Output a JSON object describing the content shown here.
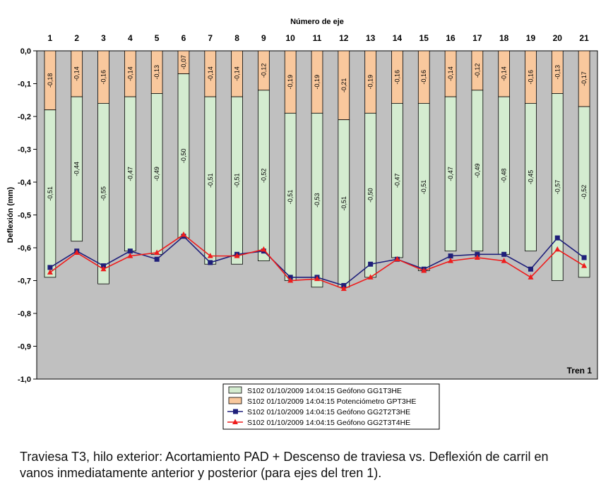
{
  "chart_data": {
    "type": "bar",
    "title": "Número de eje",
    "xlabel": "Número de eje",
    "ylabel": "Deflexión (mm)",
    "ylim": [
      -1.0,
      0.0
    ],
    "yticks": [
      "0,0",
      "-0,1",
      "-0,2",
      "-0,3",
      "-0,4",
      "-0,5",
      "-0,6",
      "-0,7",
      "-0,8",
      "-0,9",
      "-1,0"
    ],
    "categories": [
      "1",
      "2",
      "3",
      "4",
      "5",
      "6",
      "7",
      "8",
      "9",
      "10",
      "11",
      "12",
      "13",
      "14",
      "15",
      "16",
      "17",
      "18",
      "19",
      "20",
      "21"
    ],
    "annotation": "Tren 1",
    "grid": false,
    "legend_position": "bottom",
    "stacked_bar_series": [
      {
        "name": "S102 01/10/2009 14:04:15 Potenciómetro GPT3HE",
        "color": "#f9c89d",
        "values": [
          -0.18,
          -0.14,
          -0.16,
          -0.14,
          -0.13,
          -0.07,
          -0.14,
          -0.14,
          -0.12,
          -0.19,
          -0.19,
          -0.21,
          -0.19,
          -0.16,
          -0.16,
          -0.14,
          -0.12,
          -0.14,
          -0.16,
          -0.13,
          -0.17
        ],
        "labels": [
          "-0,18",
          "-0,14",
          "-0,16",
          "-0,14",
          "-0,13",
          "-0,07",
          "-0,14",
          "-0,14",
          "-0,12",
          "-0,19",
          "-0,19",
          "-0,21",
          "-0,19",
          "-0,16",
          "-0,16",
          "-0,14",
          "-0,12",
          "-0,14",
          "-0,16",
          "-0,13",
          "-0,17"
        ]
      },
      {
        "name": "S102 01/10/2009 14:04:15 Geófono GG1T3HE",
        "color": "#d4ecd0",
        "values": [
          -0.51,
          -0.44,
          -0.55,
          -0.47,
          -0.49,
          -0.5,
          -0.51,
          -0.51,
          -0.52,
          -0.51,
          -0.53,
          -0.51,
          -0.5,
          -0.47,
          -0.51,
          -0.47,
          -0.49,
          -0.48,
          -0.45,
          -0.57,
          -0.52
        ],
        "labels": [
          "-0,51",
          "-0,44",
          "-0,55",
          "-0,47",
          "-0,49",
          "-0,50",
          "-0,51",
          "-0,51",
          "-0,52",
          "-0,51",
          "-0,53",
          "-0,51",
          "-0,50",
          "-0,47",
          "-0,51",
          "-0,47",
          "-0,49",
          "-0,48",
          "-0,45",
          "-0,57",
          "-0,52"
        ]
      }
    ],
    "line_series": [
      {
        "name": "S102 01/10/2009 14:04:15 Geófono GG2T2T3HE",
        "color": "#1f1f7a",
        "marker": "square",
        "values": [
          -0.66,
          -0.61,
          -0.655,
          -0.61,
          -0.635,
          -0.565,
          -0.645,
          -0.62,
          -0.61,
          -0.69,
          -0.69,
          -0.715,
          -0.65,
          -0.635,
          -0.665,
          -0.625,
          -0.62,
          -0.62,
          -0.665,
          -0.57,
          -0.63
        ]
      },
      {
        "name": "S102 01/10/2009 14:04:15 Geófono GG2T3T4HE",
        "color": "#ee1c1c",
        "marker": "triangle",
        "values": [
          -0.675,
          -0.615,
          -0.665,
          -0.625,
          -0.615,
          -0.56,
          -0.625,
          -0.625,
          -0.605,
          -0.7,
          -0.695,
          -0.725,
          -0.69,
          -0.635,
          -0.67,
          -0.64,
          -0.63,
          -0.64,
          -0.69,
          -0.605,
          -0.655
        ]
      }
    ],
    "legend": [
      "S102 01/10/2009 14:04:15 Geófono GG1T3HE",
      "S102 01/10/2009 14:04:15 Potenciómetro GPT3HE",
      "S102 01/10/2009 14:04:15 Geófono GG2T2T3HE",
      "S102 01/10/2009 14:04:15 Geófono GG2T3T4HE"
    ],
    "plot_background": "#c0c0c0"
  },
  "caption": {
    "line1": "Traviesa T3, hilo exterior: Acortamiento PAD + Descenso de traviesa vs. Deflexión de carril en",
    "line2": "vanos inmediatamente anterior y posterior (para ejes del tren 1)."
  }
}
